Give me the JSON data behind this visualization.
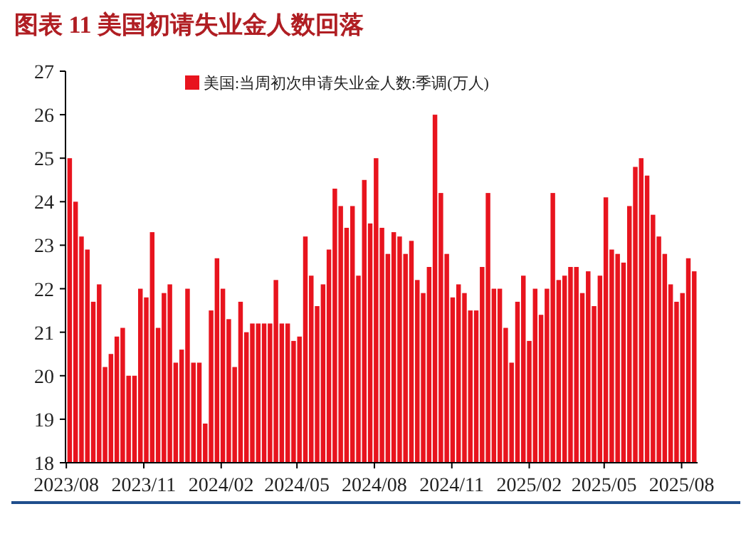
{
  "chart_data": {
    "type": "bar",
    "title": "图表 11 美国初请失业金人数回落",
    "x": [
      "2023-08-05",
      "2023-08-12",
      "2023-08-19",
      "2023-08-26",
      "2023-09-02",
      "2023-09-09",
      "2023-09-16",
      "2023-09-23",
      "2023-09-30",
      "2023-10-07",
      "2023-10-14",
      "2023-10-21",
      "2023-10-28",
      "2023-11-04",
      "2023-11-11",
      "2023-11-18",
      "2023-11-25",
      "2023-12-02",
      "2023-12-09",
      "2023-12-16",
      "2023-12-23",
      "2023-12-30",
      "2024-01-06",
      "2024-01-13",
      "2024-01-20",
      "2024-01-27",
      "2024-02-03",
      "2024-02-10",
      "2024-02-17",
      "2024-02-24",
      "2024-03-02",
      "2024-03-09",
      "2024-03-16",
      "2024-03-23",
      "2024-03-30",
      "2024-04-06",
      "2024-04-13",
      "2024-04-20",
      "2024-04-27",
      "2024-05-04",
      "2024-05-11",
      "2024-05-18",
      "2024-05-25",
      "2024-06-01",
      "2024-06-08",
      "2024-06-15",
      "2024-06-22",
      "2024-06-29",
      "2024-07-06",
      "2024-07-13",
      "2024-07-20",
      "2024-07-27",
      "2024-08-03",
      "2024-08-10",
      "2024-08-17",
      "2024-08-24",
      "2024-08-31",
      "2024-09-07",
      "2024-09-14",
      "2024-09-21",
      "2024-09-28",
      "2024-10-05",
      "2024-10-12",
      "2024-10-19",
      "2024-10-26",
      "2024-11-02",
      "2024-11-09",
      "2024-11-16",
      "2024-11-23",
      "2024-11-30",
      "2024-12-07",
      "2024-12-14",
      "2024-12-21",
      "2024-12-28",
      "2025-01-04",
      "2025-01-11",
      "2025-01-18",
      "2025-01-25",
      "2025-02-01",
      "2025-02-08",
      "2025-02-15",
      "2025-02-22",
      "2025-03-01",
      "2025-03-08",
      "2025-03-15",
      "2025-03-22",
      "2025-03-29",
      "2025-04-05",
      "2025-04-12",
      "2025-04-19",
      "2025-04-26",
      "2025-05-03",
      "2025-05-10",
      "2025-05-17",
      "2025-05-24",
      "2025-05-31",
      "2025-06-07",
      "2025-06-14",
      "2025-06-21",
      "2025-06-28",
      "2025-07-05",
      "2025-07-12",
      "2025-07-19",
      "2025-07-26",
      "2025-08-02",
      "2025-08-09",
      "2025-08-16"
    ],
    "series": [
      {
        "name": "美国:当周初次申请失业金人数:季调(万人)",
        "color": "#e8141e",
        "values": [
          25.0,
          24.0,
          23.2,
          22.9,
          21.7,
          22.1,
          20.2,
          20.5,
          20.9,
          21.1,
          20.0,
          20.0,
          22.0,
          21.8,
          23.3,
          21.1,
          21.9,
          22.1,
          20.3,
          20.6,
          22.0,
          20.3,
          20.3,
          18.9,
          21.5,
          22.7,
          22.0,
          21.3,
          20.2,
          21.7,
          21.0,
          21.2,
          21.2,
          21.2,
          21.2,
          22.2,
          21.2,
          21.2,
          20.8,
          20.9,
          23.2,
          22.3,
          21.6,
          22.1,
          22.9,
          24.3,
          23.9,
          23.4,
          23.9,
          22.3,
          24.5,
          23.5,
          25.0,
          23.4,
          22.8,
          23.3,
          23.2,
          22.8,
          23.1,
          22.2,
          21.9,
          22.5,
          26.0,
          24.2,
          22.8,
          21.8,
          22.1,
          21.9,
          21.5,
          21.5,
          22.5,
          24.2,
          22.0,
          22.0,
          21.1,
          20.3,
          21.7,
          22.3,
          20.8,
          22.0,
          21.4,
          22.0,
          24.2,
          22.2,
          22.3,
          22.5,
          22.5,
          21.9,
          22.4,
          21.6,
          22.3,
          24.1,
          22.9,
          22.8,
          22.6,
          23.9,
          24.8,
          25.0,
          24.6,
          23.7,
          23.2,
          22.8,
          22.1,
          21.7,
          21.9,
          22.7,
          22.4
        ]
      }
    ],
    "xlim": [
      "2023-07-31",
      "2025-08-20"
    ],
    "xticks": [
      {
        "value": "2023-08-01",
        "label": "2023/08"
      },
      {
        "value": "2023-11-01",
        "label": "2023/11"
      },
      {
        "value": "2024-02-01",
        "label": "2024/02"
      },
      {
        "value": "2024-05-01",
        "label": "2024/05"
      },
      {
        "value": "2024-08-01",
        "label": "2024/08"
      },
      {
        "value": "2024-11-01",
        "label": "2024/11"
      },
      {
        "value": "2025-02-01",
        "label": "2025/02"
      },
      {
        "value": "2025-05-01",
        "label": "2025/05"
      },
      {
        "value": "2025-08-01",
        "label": "2025/08"
      }
    ],
    "ylim": [
      18,
      27
    ],
    "yticks": [
      18,
      19,
      20,
      21,
      22,
      23,
      24,
      25,
      26,
      27
    ],
    "legend": "top"
  }
}
